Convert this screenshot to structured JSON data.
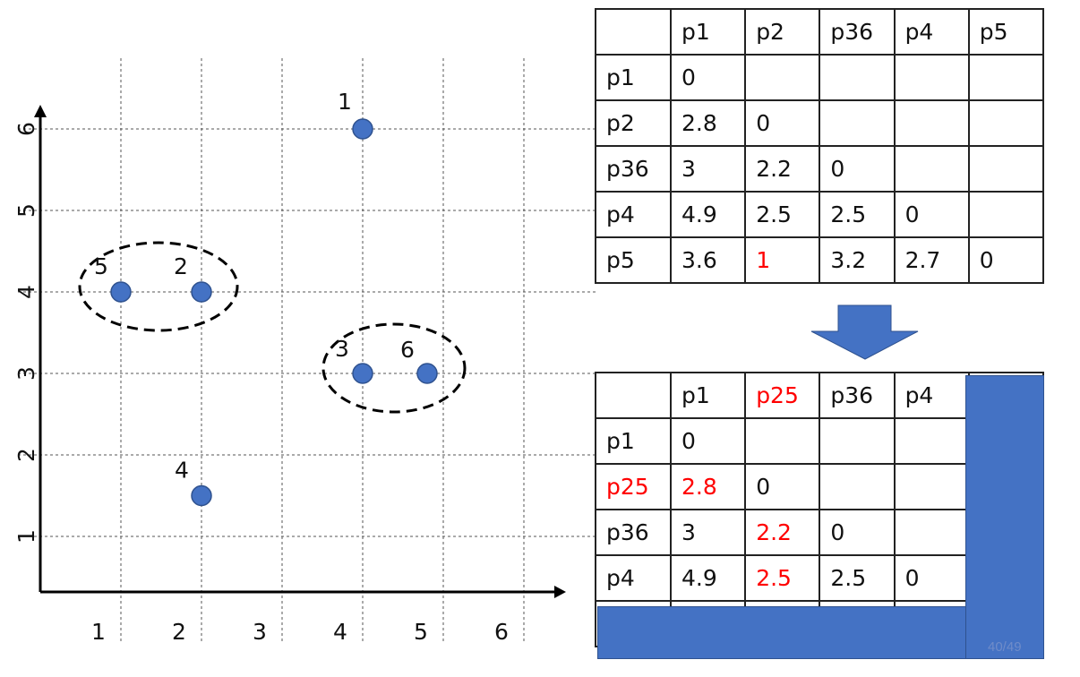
{
  "colors": {
    "point": "#4472c4",
    "highlight": "#ff0000",
    "grid": "#555555",
    "text": "#111111"
  },
  "scatter": {
    "x_ticks": [
      "1",
      "2",
      "3",
      "4",
      "5",
      "6"
    ],
    "y_ticks": [
      "1",
      "2",
      "3",
      "4",
      "5",
      "6"
    ],
    "points": [
      {
        "label": "1",
        "x": 4,
        "y": 6
      },
      {
        "label": "2",
        "x": 2,
        "y": 4
      },
      {
        "label": "3",
        "x": 4,
        "y": 3
      },
      {
        "label": "4",
        "x": 2,
        "y": 1.5
      },
      {
        "label": "5",
        "x": 1,
        "y": 4
      },
      {
        "label": "6",
        "x": 4.8,
        "y": 3
      }
    ],
    "clusters": [
      {
        "name": "cluster-2-5",
        "members": [
          "5",
          "2"
        ]
      },
      {
        "name": "cluster-3-6",
        "members": [
          "3",
          "6"
        ]
      }
    ]
  },
  "matrix_before": {
    "headers": [
      "",
      "p1",
      "p2",
      "p36",
      "p4",
      "p5"
    ],
    "rows": [
      {
        "label": "p1",
        "cells": [
          "0",
          "",
          "",
          "",
          ""
        ]
      },
      {
        "label": "p2",
        "cells": [
          "2.8",
          "0",
          "",
          "",
          ""
        ]
      },
      {
        "label": "p36",
        "cells": [
          "3",
          "2.2",
          "0",
          "",
          ""
        ]
      },
      {
        "label": "p4",
        "cells": [
          "4.9",
          "2.5",
          "2.5",
          "0",
          ""
        ]
      },
      {
        "label": "p5",
        "cells": [
          "3.6",
          "1",
          "3.2",
          "2.7",
          "0"
        ]
      }
    ],
    "minimum_value": "1"
  },
  "matrix_after": {
    "headers": [
      "",
      "p1",
      "p25",
      "p36",
      "p4",
      ""
    ],
    "rows": [
      {
        "label": "p1",
        "cells": [
          "0",
          "",
          "",
          "",
          ""
        ]
      },
      {
        "label": "p25",
        "cells": [
          "2.8",
          "0",
          "",
          "",
          ""
        ]
      },
      {
        "label": "p36",
        "cells": [
          "3",
          "2.2",
          "0",
          "",
          ""
        ]
      },
      {
        "label": "p4",
        "cells": [
          "4.9",
          "2.5",
          "2.5",
          "0",
          ""
        ]
      },
      {
        "label": "",
        "cells": [
          "",
          "",
          "",
          "",
          ""
        ]
      }
    ],
    "merged_label": "p25"
  },
  "page_number": "40/49"
}
